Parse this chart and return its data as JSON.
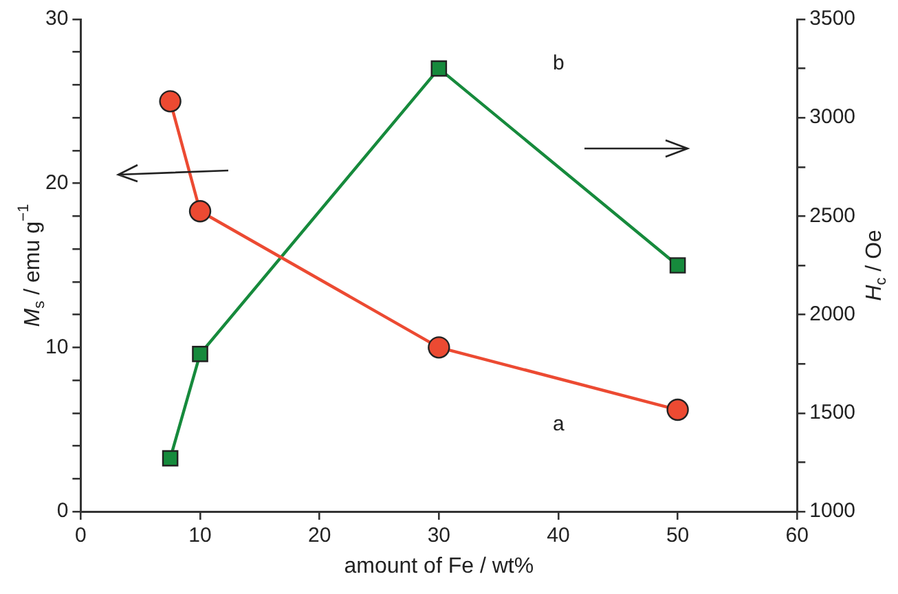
{
  "chart_data": {
    "type": "line",
    "xlabel": "amount of Fe / wt%",
    "ylabel": "M$_{s}$ / emu g$^{−1}$",
    "y2label": "H$_{c}$ / Oe",
    "x": [
      7.5,
      10,
      30,
      50
    ],
    "series": [
      {
        "color": "#ec4a32",
        "values": [
          25,
          18.3,
          10,
          6.2
        ],
        "marker": "circle"
      },
      {
        "color": "#168a3c",
        "values": [
          1270,
          1800,
          3250,
          2250
        ],
        "axis": "y2",
        "marker": "square"
      }
    ],
    "xlim": [
      0,
      60
    ],
    "xticks": [
      0,
      10,
      20,
      30,
      40,
      50,
      60
    ],
    "ylim": [
      0,
      30
    ],
    "yticks": [
      0,
      {
        "value": 2,
        "label": null
      },
      {
        "value": 4,
        "label": null
      },
      {
        "value": 6,
        "label": null
      },
      {
        "value": 8,
        "label": null
      },
      10,
      {
        "value": 12,
        "label": null
      },
      {
        "value": 14,
        "label": null
      },
      {
        "value": 16,
        "label": null
      },
      {
        "value": 18,
        "label": null
      },
      20,
      {
        "value": 22,
        "label": null
      },
      {
        "value": 24,
        "label": null
      },
      {
        "value": 26,
        "label": null
      },
      {
        "value": 28,
        "label": null
      },
      30
    ],
    "y2lim": [
      1000,
      3500
    ],
    "y2ticks": [
      1000,
      {
        "value": 1250,
        "label": null
      },
      1500,
      {
        "value": 1750,
        "label": null
      },
      2000,
      {
        "value": 2250,
        "label": null
      },
      2500,
      {
        "value": 2750,
        "label": null
      },
      3000,
      {
        "value": 3250,
        "label": null
      },
      3500
    ],
    "annotations": [
      "a",
      "b"
    ],
    "grid": false,
    "legend": false,
    "line_style": "solid"
  }
}
